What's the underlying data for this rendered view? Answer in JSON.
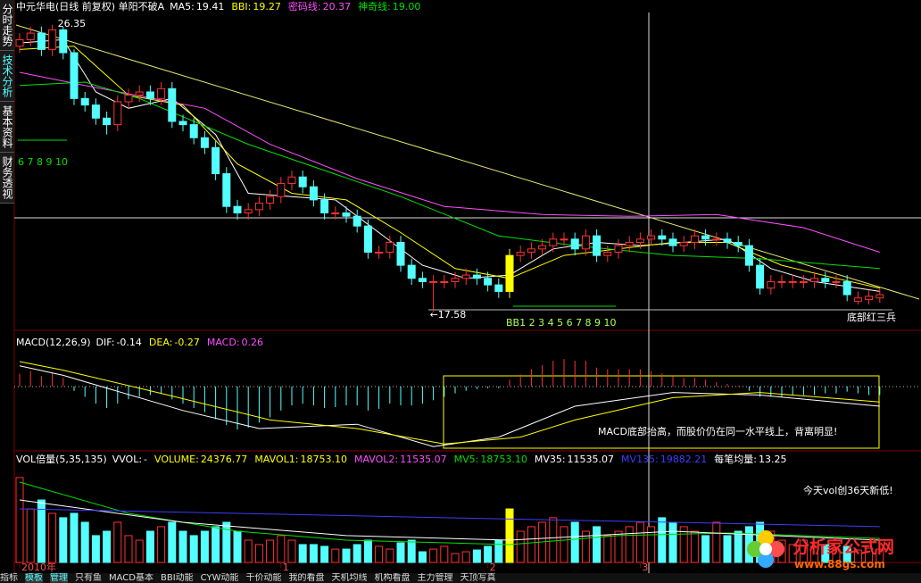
{
  "sidebar": {
    "tabs": [
      "分时走势",
      "技术分析",
      "基本资料",
      "财务透视"
    ]
  },
  "chart_data": [
    {
      "type": "candlestick",
      "title": "中元华电(日线 前复权) 单阳不破A",
      "ylim": [
        17.01,
        26.73
      ],
      "up_color": "#ff3232",
      "down_color": "#54ffff",
      "highlight_index": 45,
      "highlight_color": "#ffff00",
      "open": [
        25.7,
        25.9,
        26.1,
        25.6,
        26.2,
        25.5,
        24.1,
        23.9,
        23.5,
        23.3,
        24.0,
        24.2,
        24.3,
        24.1,
        24.4,
        23.4,
        23.3,
        22.9,
        22.6,
        21.8,
        20.8,
        20.6,
        20.7,
        20.9,
        21.1,
        21.5,
        21.7,
        21.4,
        21.0,
        20.6,
        20.6,
        20.5,
        20.2,
        19.4,
        19.4,
        19.7,
        19.0,
        18.6,
        18.5,
        18.5,
        18.5,
        18.6,
        18.7,
        18.6,
        18.4,
        18.2,
        19.3,
        19.4,
        19.5,
        19.6,
        19.8,
        19.8,
        19.5,
        19.9,
        19.3,
        19.4,
        19.6,
        19.7,
        19.8,
        19.9,
        19.8,
        19.6,
        19.7,
        19.9,
        19.8,
        19.8,
        19.7,
        19.6,
        19.0,
        18.3,
        18.5,
        18.5,
        18.5,
        18.5,
        18.6,
        18.5,
        18.5,
        17.9,
        17.95,
        18.0
      ],
      "high": [
        26.1,
        26.3,
        26.3,
        26.35,
        26.3,
        25.6,
        24.3,
        24.1,
        23.7,
        24.2,
        24.4,
        24.5,
        24.5,
        24.6,
        24.6,
        23.6,
        23.5,
        23.1,
        22.8,
        22.0,
        21.0,
        20.9,
        21.1,
        21.3,
        21.7,
        21.9,
        21.9,
        21.6,
        21.2,
        20.8,
        20.8,
        20.7,
        20.4,
        19.6,
        19.9,
        19.9,
        19.2,
        18.8,
        18.7,
        18.7,
        18.8,
        18.9,
        18.9,
        18.8,
        18.6,
        19.5,
        19.6,
        19.7,
        19.8,
        20.0,
        20.0,
        20.0,
        20.1,
        20.1,
        19.6,
        19.8,
        19.9,
        20.0,
        20.1,
        20.1,
        20.0,
        19.9,
        20.1,
        20.1,
        20.0,
        20.0,
        19.9,
        19.8,
        19.2,
        18.7,
        18.7,
        18.7,
        18.7,
        18.8,
        18.8,
        18.7,
        18.7,
        18.2,
        18.25,
        18.3
      ],
      "low": [
        25.5,
        25.7,
        25.4,
        25.4,
        25.3,
        23.9,
        23.7,
        23.3,
        23.0,
        23.1,
        23.8,
        24.0,
        23.9,
        23.9,
        23.2,
        23.1,
        22.7,
        22.4,
        21.6,
        20.6,
        20.4,
        20.4,
        20.5,
        20.7,
        20.9,
        21.3,
        21.2,
        20.8,
        20.4,
        20.4,
        20.3,
        20.0,
        19.2,
        19.2,
        19.2,
        18.8,
        18.4,
        18.3,
        17.58,
        18.3,
        18.3,
        18.4,
        18.4,
        18.2,
        18.0,
        18.0,
        19.1,
        19.2,
        19.3,
        19.4,
        19.6,
        19.3,
        19.3,
        19.1,
        19.1,
        19.2,
        19.4,
        19.5,
        19.6,
        19.6,
        19.4,
        19.4,
        19.5,
        19.6,
        19.6,
        19.5,
        19.4,
        18.8,
        18.1,
        18.1,
        18.3,
        18.3,
        18.3,
        18.3,
        18.3,
        18.3,
        17.9,
        17.8,
        17.8,
        17.85
      ],
      "close": [
        25.9,
        26.1,
        25.6,
        26.2,
        25.5,
        24.1,
        23.9,
        23.5,
        23.3,
        24.0,
        24.2,
        24.3,
        24.1,
        24.4,
        23.4,
        23.3,
        22.9,
        22.6,
        21.8,
        20.8,
        20.6,
        20.7,
        20.9,
        21.1,
        21.5,
        21.7,
        21.4,
        21.0,
        20.6,
        20.6,
        20.5,
        20.2,
        19.4,
        19.4,
        19.7,
        19.0,
        18.6,
        18.5,
        18.5,
        18.5,
        18.6,
        18.7,
        18.6,
        18.4,
        18.2,
        19.3,
        19.4,
        19.5,
        19.6,
        19.8,
        19.8,
        19.5,
        19.9,
        19.3,
        19.4,
        19.6,
        19.7,
        19.8,
        19.9,
        19.8,
        19.6,
        19.7,
        19.9,
        19.8,
        19.8,
        19.7,
        19.6,
        19.0,
        18.3,
        18.5,
        18.5,
        18.5,
        18.5,
        18.6,
        18.5,
        18.5,
        18.1,
        18.0,
        18.05,
        18.1
      ],
      "series": [
        {
          "label": "MA5:",
          "current": 19.41,
          "color": "#ffffff",
          "x": [
            0,
            4,
            7,
            10,
            14,
            18,
            21,
            25,
            29,
            33,
            37,
            41,
            45,
            49,
            53,
            57,
            61,
            65,
            69,
            73,
            79
          ],
          "values": [
            25.8,
            25.9,
            24.3,
            23.8,
            24.1,
            23.0,
            21.2,
            21.1,
            21.0,
            20.0,
            19.0,
            18.6,
            18.7,
            19.5,
            19.7,
            19.6,
            19.7,
            19.8,
            18.9,
            18.5,
            18.2
          ]
        },
        {
          "label": "BBI:",
          "current": 19.27,
          "color": "#ffff00",
          "x": [
            0,
            5,
            10,
            15,
            20,
            25,
            30,
            35,
            40,
            45,
            50,
            55,
            60,
            65,
            70,
            75,
            79
          ],
          "values": [
            25.6,
            25.7,
            24.2,
            23.9,
            22.1,
            21.2,
            21.0,
            20.0,
            18.9,
            18.6,
            19.3,
            19.5,
            19.7,
            19.7,
            19.0,
            18.6,
            18.3
          ]
        },
        {
          "label": "密码线:",
          "current": 20.37,
          "color": "#ff4dff",
          "x": [
            0,
            6,
            17,
            23,
            31,
            39,
            48,
            56,
            64,
            72,
            79
          ],
          "values": [
            24.9,
            24.5,
            23.8,
            22.7,
            21.65,
            20.8,
            20.55,
            20.5,
            20.55,
            20.15,
            19.4
          ]
        },
        {
          "label": "神奇线:",
          "current": 19.0,
          "value_label": "19.00",
          "color": "#00e000",
          "x": [
            0,
            6,
            11,
            21,
            35,
            44,
            51,
            60,
            68,
            79
          ],
          "values": [
            24.5,
            24.6,
            24.1,
            22.7,
            21.1,
            19.9,
            19.6,
            19.3,
            19.2,
            18.9
          ]
        }
      ],
      "high_mark": 26.35,
      "low_mark": {
        "value": 17.58,
        "label": "←17.58"
      },
      "annotations": [
        "6 7 8 9 10",
        "BB1 2 3 4 5 6 7 8 9 10",
        "底部红三兵"
      ]
    },
    {
      "type": "macd",
      "title": "MACD(12,26,9)",
      "ylim": [
        -0.75,
        0.55
      ],
      "up_color": "#ff3232",
      "down_color": "#54ffff",
      "values": [
        0.15,
        0.18,
        0.12,
        0.16,
        0.1,
        -0.05,
        -0.12,
        -0.2,
        -0.25,
        -0.2,
        -0.15,
        -0.12,
        -0.1,
        -0.08,
        -0.15,
        -0.2,
        -0.25,
        -0.3,
        -0.38,
        -0.45,
        -0.5,
        -0.48,
        -0.42,
        -0.36,
        -0.28,
        -0.22,
        -0.2,
        -0.22,
        -0.25,
        -0.24,
        -0.22,
        -0.22,
        -0.28,
        -0.26,
        -0.2,
        -0.22,
        -0.22,
        -0.2,
        -0.16,
        -0.12,
        -0.08,
        -0.05,
        -0.03,
        -0.02,
        -0.02,
        0.08,
        0.14,
        0.2,
        0.25,
        0.3,
        0.32,
        0.3,
        0.3,
        0.22,
        0.2,
        0.2,
        0.2,
        0.2,
        0.18,
        0.15,
        0.12,
        0.1,
        0.1,
        0.08,
        0.05,
        0.03,
        0.01,
        -0.05,
        -0.12,
        -0.12,
        -0.12,
        -0.1,
        -0.1,
        -0.1,
        -0.08,
        -0.08,
        -0.06,
        -0.08,
        -0.1,
        -0.1
      ],
      "series": [
        {
          "label": "DIF:",
          "current": -0.14,
          "color": "#ffffff",
          "x": [
            0,
            4,
            15,
            22,
            31,
            38,
            44,
            51,
            60,
            68,
            79
          ],
          "values": [
            0.24,
            0.13,
            -0.28,
            -0.49,
            -0.44,
            -0.7,
            -0.59,
            -0.23,
            -0.07,
            -0.1,
            -0.23
          ]
        },
        {
          "label": "DEA:",
          "current": -0.27,
          "color": "#ffff00",
          "x": [
            0,
            4,
            13,
            23,
            31,
            39,
            46,
            51,
            60,
            68,
            79
          ],
          "values": [
            0.29,
            0.19,
            -0.08,
            -0.39,
            -0.49,
            -0.67,
            -0.59,
            -0.39,
            -0.13,
            -0.07,
            -0.18
          ]
        }
      ],
      "histogram_label": "MACD:",
      "histogram_current": 0.26,
      "histogram_color": "#ff4dff",
      "annotation": "MACD底部抬高，而股价仍在同一水平线上，背离明显!"
    },
    {
      "type": "volume",
      "title": "VOL倍量(5,35,135)",
      "ylim": [
        0,
        70000
      ],
      "values": [
        57900,
        36500,
        42600,
        33500,
        30500,
        33500,
        27400,
        18300,
        21300,
        27400,
        18300,
        15200,
        21300,
        24400,
        27400,
        21300,
        18300,
        21300,
        24400,
        27400,
        21300,
        15200,
        12200,
        15200,
        18300,
        15200,
        12200,
        12200,
        11000,
        9100,
        9100,
        12200,
        15200,
        11000,
        9100,
        13400,
        15200,
        7300,
        9100,
        11000,
        6100,
        7300,
        8500,
        11000,
        15200,
        36500,
        21300,
        24400,
        27400,
        30500,
        24400,
        27400,
        21300,
        24400,
        18300,
        21300,
        24400,
        27400,
        24376.77,
        30500,
        27400,
        24400,
        21300,
        18300,
        27400,
        18300,
        21300,
        24400,
        27400,
        21300,
        15200,
        12200,
        15200,
        11000,
        12200,
        9100,
        11000,
        8500,
        9700,
        9100
      ],
      "items": [
        {
          "label": "VVOL:",
          "text": "-",
          "color": "#ffffff"
        },
        {
          "label": "VOLUME:",
          "current": 24376.77,
          "color": "#ffff00"
        },
        {
          "label": "MAVOL1:",
          "current": 18753.1,
          "value_label": "18753.10",
          "color": "#ffff00"
        },
        {
          "label": "MAVOL2:",
          "current": 11535.07,
          "color": "#ff4dff"
        },
        {
          "label": "MV5:",
          "current": 18753.1,
          "value_label": "18753.10",
          "color": "#00e000",
          "x": [
            0,
            10,
            20,
            30,
            45,
            55,
            65,
            79
          ],
          "values": [
            54800,
            33500,
            21300,
            15200,
            12200,
            18300,
            20100,
            16400
          ]
        },
        {
          "label": "MV35:",
          "current": 11535.07,
          "color": "#ffffff",
          "x": [
            0,
            15,
            30,
            45,
            60,
            79
          ],
          "values": [
            42600,
            27400,
            18300,
            15200,
            21300,
            15200
          ]
        },
        {
          "label": "MV135:",
          "current": 19882.21,
          "color": "#3c3cff",
          "x": [
            0,
            20,
            40,
            60,
            79
          ],
          "values": [
            36500,
            33500,
            30400,
            27400,
            24400
          ]
        },
        {
          "label": "每笔均量:",
          "current": 13.25,
          "color": "#ffffff"
        }
      ],
      "xticks": [
        {
          "value": 0,
          "label": "2010年"
        },
        {
          "value": 24,
          "label": "1"
        },
        {
          "value": 43,
          "label": "2"
        },
        {
          "value": 57,
          "label": "3"
        }
      ],
      "annotation": "今天vol创36天新低!"
    }
  ],
  "bottom_bar": {
    "tabs": [
      "指标",
      "模板",
      "管理",
      "只有鱼",
      "MACD基本",
      "BBI动能",
      "CYW动能",
      "千价动能",
      "我的看盘",
      "天机均线",
      "机构看盘",
      "主力管理",
      "天顶写真"
    ]
  },
  "watermark": {
    "title": "分析家公式网",
    "url": "www.88gs.com"
  }
}
